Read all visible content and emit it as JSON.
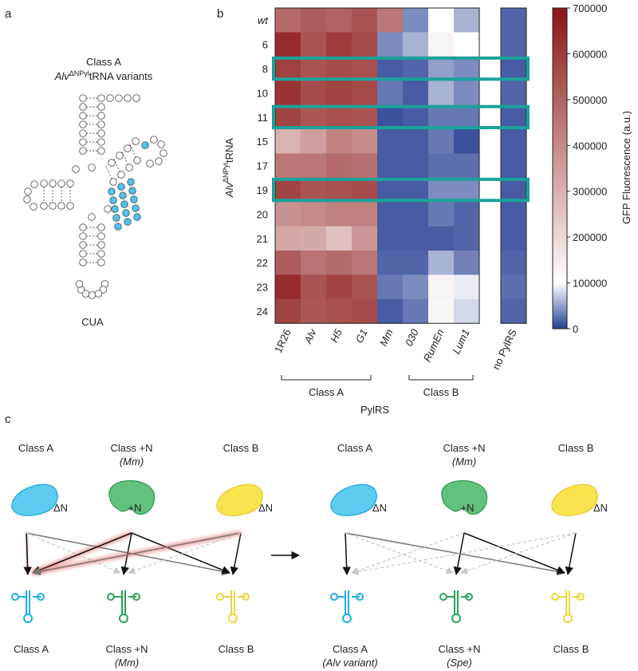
{
  "panel_labels": [
    "a",
    "b",
    "c"
  ],
  "panel_a": {
    "title": "Class A",
    "subtitle": {
      "base": "Alv",
      "sup": "ΔNPyl",
      "tail": "tRNA variants"
    },
    "anticodon": "CUA"
  },
  "chart_data": {
    "type": "heatmap",
    "rows": [
      "wt",
      "6",
      "8",
      "10",
      "11",
      "15",
      "17",
      "19",
      "20",
      "21",
      "22",
      "23",
      "24"
    ],
    "columns": [
      "1R26",
      "Alv",
      "H5",
      "G1",
      "Mm",
      "030",
      "RumEn",
      "Lum1",
      "no PylRS"
    ],
    "values": [
      [
        480000,
        520000,
        500000,
        540000,
        450000,
        40000,
        100000,
        60000,
        20000
      ],
      [
        640000,
        540000,
        600000,
        560000,
        40000,
        60000,
        130000,
        100000,
        20000
      ],
      [
        590000,
        540000,
        560000,
        550000,
        15000,
        20000,
        50000,
        40000,
        15000
      ],
      [
        620000,
        560000,
        580000,
        570000,
        30000,
        15000,
        60000,
        40000,
        20000
      ],
      [
        580000,
        530000,
        550000,
        540000,
        10000,
        15000,
        30000,
        30000,
        15000
      ],
      [
        300000,
        350000,
        420000,
        400000,
        15000,
        15000,
        30000,
        10000,
        15000
      ],
      [
        450000,
        450000,
        480000,
        470000,
        15000,
        15000,
        25000,
        25000,
        15000
      ],
      [
        580000,
        540000,
        550000,
        560000,
        15000,
        15000,
        40000,
        40000,
        15000
      ],
      [
        380000,
        400000,
        420000,
        420000,
        15000,
        15000,
        30000,
        20000,
        15000
      ],
      [
        330000,
        320000,
        260000,
        370000,
        15000,
        15000,
        15000,
        20000,
        15000
      ],
      [
        520000,
        460000,
        480000,
        450000,
        20000,
        20000,
        60000,
        35000,
        20000
      ],
      [
        640000,
        540000,
        580000,
        540000,
        30000,
        40000,
        130000,
        90000,
        25000
      ],
      [
        580000,
        530000,
        550000,
        560000,
        15000,
        30000,
        120000,
        80000,
        20000
      ]
    ],
    "ylabel": {
      "base": "Alv",
      "sup": "ΔNPyl",
      "tail": "tRNA"
    },
    "xlabel": "PylRS",
    "groups": [
      {
        "label": "Class A",
        "members": [
          "1R26",
          "Alv",
          "H5",
          "G1"
        ]
      },
      {
        "label": "Class B",
        "members": [
          "030",
          "RumEn",
          "Lum1"
        ]
      }
    ],
    "highlighted_rows": [
      "8",
      "11",
      "19"
    ],
    "highlight_color": "#1aa39a",
    "colorbar": {
      "label": "GFP Fluorescence (a.u.)",
      "lim": [
        0,
        700000
      ],
      "ticks": [
        0,
        100000,
        200000,
        300000,
        400000,
        500000,
        600000,
        700000
      ],
      "colorscale": [
        [
          0,
          "#263f92"
        ],
        [
          100000,
          "#ffffff"
        ],
        [
          700000,
          "#8b1515"
        ]
      ]
    }
  },
  "panel_c": {
    "states": [
      {
        "enzymes": [
          {
            "label": "Class A",
            "tag": "ΔN"
          },
          {
            "label": "Class +N",
            "sublabel": "(Mm)",
            "tag": "+N"
          },
          {
            "label": "Class B",
            "tag": "ΔN"
          }
        ],
        "trnas": [
          {
            "label": "Class A"
          },
          {
            "label": "Class +N",
            "sublabel": "(Mm)"
          },
          {
            "label": "Class B"
          }
        ]
      },
      {
        "enzymes": [
          {
            "label": "Class A",
            "tag": "ΔN"
          },
          {
            "label": "Class +N",
            "sublabel": "(Mm)",
            "tag": "+N"
          },
          {
            "label": "Class B",
            "tag": "ΔN"
          }
        ],
        "trnas": [
          {
            "label": "Class A",
            "sublabel": "(Alv variant)"
          },
          {
            "label": "Class +N",
            "sublabel": "(Spe)"
          },
          {
            "label": "Class B"
          }
        ]
      }
    ]
  }
}
